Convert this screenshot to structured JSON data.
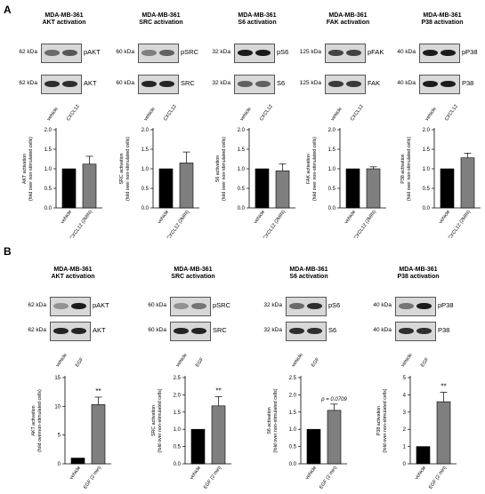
{
  "panels": [
    {
      "label": "A",
      "groups": [
        {
          "title": [
            "MDA-MB-361",
            "AKT activation"
          ],
          "blots": [
            {
              "kda": "62 kDa",
              "protein": "pAKT",
              "b1": 0.55,
              "b2": 0.65
            },
            {
              "kda": "62 kDa",
              "protein": "AKT",
              "b1": 0.85,
              "b2": 0.85
            }
          ],
          "lanes": [
            "vehicle",
            "CXCL12"
          ],
          "chart_data": {
            "type": "bar",
            "categories": [
              "vehicle",
              "CXCL12 (2MIN)"
            ],
            "values": [
              1.0,
              1.12
            ],
            "errors": [
              0,
              0.2
            ],
            "ylabel": [
              "AKT activation",
              "(fold over non-stimulated cells)"
            ],
            "ylim": [
              0,
              2.0
            ],
            "yticks": [
              "0.0",
              "0.5",
              "1.0",
              "1.5",
              "2.0"
            ],
            "annotation": ""
          }
        },
        {
          "title": [
            "MDA-MB-361",
            "SRC activation"
          ],
          "blots": [
            {
              "kda": "60 kDa",
              "protein": "pSRC",
              "b1": 0.45,
              "b2": 0.6
            },
            {
              "kda": "60 kDa",
              "protein": "SRC",
              "b1": 0.9,
              "b2": 0.9
            }
          ],
          "lanes": [
            "vehicle",
            "CXCL12"
          ],
          "chart_data": {
            "type": "bar",
            "categories": [
              "vehicle",
              "CXCL12 (2MIN)"
            ],
            "values": [
              1.0,
              1.15
            ],
            "errors": [
              0,
              0.28
            ],
            "ylabel": [
              "SRC activation",
              "(fold over non-stimulated cells)"
            ],
            "ylim": [
              0,
              2.0
            ],
            "yticks": [
              "0.0",
              "0.5",
              "1.0",
              "1.5",
              "2.0"
            ],
            "annotation": ""
          }
        },
        {
          "title": [
            "MDA-MB-361",
            "S6 activation"
          ],
          "blots": [
            {
              "kda": "32 kDa",
              "protein": "pS6",
              "b1": 0.95,
              "b2": 0.95
            },
            {
              "kda": "32 kDa",
              "protein": "S6",
              "b1": 0.6,
              "b2": 0.6
            }
          ],
          "lanes": [
            "vehicle",
            "CXCL12"
          ],
          "chart_data": {
            "type": "bar",
            "categories": [
              "vehicle",
              "CXCL12 (2MIN)"
            ],
            "values": [
              1.0,
              0.95
            ],
            "errors": [
              0,
              0.18
            ],
            "ylabel": [
              "S6 activation",
              "(fold over non-stimulated cells)"
            ],
            "ylim": [
              0,
              2.0
            ],
            "yticks": [
              "0.0",
              "0.5",
              "1.0",
              "1.5",
              "2.0"
            ],
            "annotation": ""
          }
        },
        {
          "title": [
            "MDA-MB-361",
            "FAK activation"
          ],
          "blots": [
            {
              "kda": "125 kDa",
              "protein": "pFAK",
              "b1": 0.75,
              "b2": 0.75
            },
            {
              "kda": "125 kDa",
              "protein": "FAK",
              "b1": 0.8,
              "b2": 0.8
            }
          ],
          "lanes": [
            "vehicle",
            "CXCL12"
          ],
          "chart_data": {
            "type": "bar",
            "categories": [
              "vehicle",
              "CXCL12 (2MIN)"
            ],
            "values": [
              1.0,
              1.0
            ],
            "errors": [
              0,
              0.05
            ],
            "ylabel": [
              "FAK activation",
              "(fold over non-stimulated cells)"
            ],
            "ylim": [
              0,
              2.0
            ],
            "yticks": [
              "0.0",
              "0.5",
              "1.0",
              "1.5",
              "2.0"
            ],
            "annotation": ""
          }
        },
        {
          "title": [
            "MDA-MB-361",
            "P38 activation"
          ],
          "blots": [
            {
              "kda": "40 kDa",
              "protein": "pP38",
              "b1": 0.95,
              "b2": 0.95
            },
            {
              "kda": "40 kDa",
              "protein": "P38",
              "b1": 0.95,
              "b2": 0.95
            }
          ],
          "lanes": [
            "vehicle",
            "CXCL12"
          ],
          "chart_data": {
            "type": "bar",
            "categories": [
              "vehicle",
              "CXCL12 (2MIN)"
            ],
            "values": [
              1.0,
              1.28
            ],
            "errors": [
              0,
              0.12
            ],
            "ylabel": [
              "P38 activation",
              "(fold over non-stimulated cells)"
            ],
            "ylim": [
              0,
              2.0
            ],
            "yticks": [
              "0.0",
              "0.5",
              "1.0",
              "1.5",
              "2.0"
            ],
            "annotation": ""
          }
        }
      ]
    },
    {
      "label": "B",
      "groups": [
        {
          "title": [
            "MDA-MB-361",
            "AKT activation"
          ],
          "blots": [
            {
              "kda": "62 kDa",
              "protein": "pAKT",
              "b1": 0.35,
              "b2": 0.95
            },
            {
              "kda": "62 kDa",
              "protein": "AKT",
              "b1": 0.9,
              "b2": 0.9
            }
          ],
          "lanes": [
            "vehicle",
            "EGF"
          ],
          "chart_data": {
            "type": "bar",
            "categories": [
              "vehicle",
              "EGF (2 min)"
            ],
            "values": [
              1.0,
              10.3
            ],
            "errors": [
              0,
              1.3
            ],
            "ylabel": [
              "AKT activation",
              "(fold overnon-stimulated cells)"
            ],
            "ylim": [
              0,
              15
            ],
            "yticks": [
              "0",
              "5",
              "10",
              "15"
            ],
            "annotation": "**"
          }
        },
        {
          "title": [
            "MDA-MB-361",
            "SRC activation"
          ],
          "blots": [
            {
              "kda": "60 kDa",
              "protein": "pSRC",
              "b1": 0.35,
              "b2": 0.5
            },
            {
              "kda": "60 kDa",
              "protein": "SRC",
              "b1": 0.9,
              "b2": 0.9
            }
          ],
          "lanes": [
            "vehicle",
            "EGF"
          ],
          "chart_data": {
            "type": "bar",
            "categories": [
              "vehicle",
              "EGF (2 min)"
            ],
            "values": [
              1.0,
              1.68
            ],
            "errors": [
              0,
              0.27
            ],
            "ylabel": [
              "SRC activation",
              "(fold over non-stimulated cells)"
            ],
            "ylim": [
              0,
              2.5
            ],
            "yticks": [
              "0.0",
              "0.5",
              "1.0",
              "1.5",
              "2.0",
              "2.5"
            ],
            "annotation": "**"
          }
        },
        {
          "title": [
            "MDA-MB-361",
            "S6 activation"
          ],
          "blots": [
            {
              "kda": "32 kDa",
              "protein": "pS6",
              "b1": 0.55,
              "b2": 0.85
            },
            {
              "kda": "32 kDa",
              "protein": "S6",
              "b1": 0.85,
              "b2": 0.85
            }
          ],
          "lanes": [
            "vehicle",
            "EGF"
          ],
          "chart_data": {
            "type": "bar",
            "categories": [
              "vehicle",
              "EGF (2 min)"
            ],
            "values": [
              1.0,
              1.55
            ],
            "errors": [
              0,
              0.18
            ],
            "ylabel": [
              "S6 activation",
              "(fold over non-stimulated cells)"
            ],
            "ylim": [
              0,
              2.5
            ],
            "yticks": [
              "0.0",
              "0.5",
              "1.0",
              "1.5",
              "2.0",
              "2.5"
            ],
            "annotation": "p = 0.0709"
          }
        },
        {
          "title": [
            "MDA-MB-361",
            "P38 activation"
          ],
          "blots": [
            {
              "kda": "40 kDa",
              "protein": "pP38",
              "b1": 0.5,
              "b2": 0.95
            },
            {
              "kda": "40 kDa",
              "protein": "P38",
              "b1": 0.85,
              "b2": 0.85
            }
          ],
          "lanes": [
            "vehicle",
            "EGF"
          ],
          "chart_data": {
            "type": "bar",
            "categories": [
              "vehicle",
              "EGF (2 min)"
            ],
            "values": [
              1.0,
              3.6
            ],
            "errors": [
              0,
              0.55
            ],
            "ylabel": [
              "P38 activation",
              "(fold over non-stimulated cells)"
            ],
            "ylim": [
              0,
              5
            ],
            "yticks": [
              "0",
              "1",
              "2",
              "3",
              "4",
              "5"
            ],
            "annotation": "**"
          }
        }
      ]
    }
  ],
  "colors": {
    "vehicle_bar": "#000000",
    "treated_bar": "#7f7f7f",
    "band": "#111111",
    "blot_bg": "#d8d8d8"
  }
}
